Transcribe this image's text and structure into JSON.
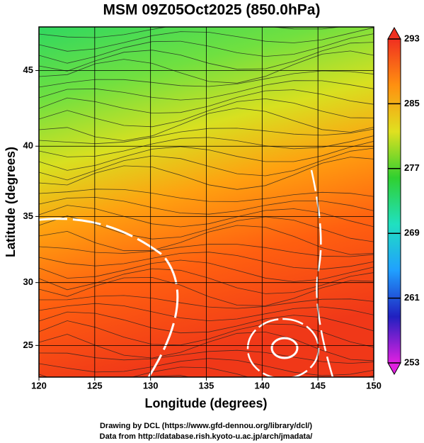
{
  "chart_data": {
    "type": "contour",
    "title": "MSM 09Z05Oct2025 (850.0hPa)",
    "x_label": "Longitude (degrees)",
    "y_label": "Latitude  (degrees)",
    "xlim": [
      120,
      150
    ],
    "xticks": [
      120,
      125,
      130,
      135,
      140,
      145,
      150
    ],
    "ylim": [
      22.4,
      47.7
    ],
    "yticks": [
      25,
      30,
      35,
      40,
      45
    ],
    "projection": "mercator",
    "grid": true,
    "colorbar": {
      "lim": [
        253,
        293
      ],
      "ticks": [
        253,
        261,
        269,
        277,
        285,
        293
      ],
      "colors": [
        "#e020e0",
        "#2020c0",
        "#20a0ff",
        "#20e0c0",
        "#30d030",
        "#e0e020",
        "#ff9010",
        "#f03020"
      ]
    },
    "footer": [
      "Drawing by DCL (https://www.gfd-dennou.org/library/dcl/)",
      "Data from http://database.rish.kyoto-u.ac.jp/arch/jmadata/"
    ]
  }
}
